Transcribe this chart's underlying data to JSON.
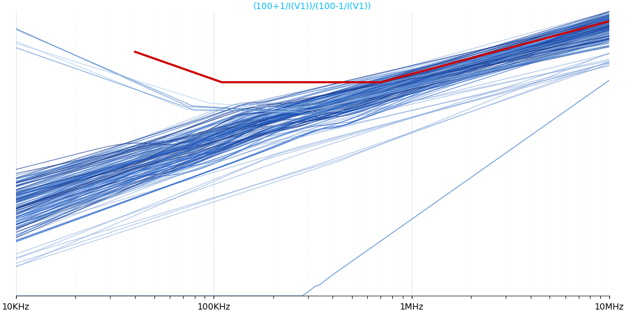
{
  "title": "(100+1/I(V1))/(100-1/I(V1))",
  "title_color": "#00BFFF",
  "title_fontsize": 9,
  "x_min": 10000,
  "x_max": 10000000,
  "xtick_labels": [
    "10KHz",
    "100KHz",
    "1MHz",
    "10MHz"
  ],
  "xtick_positions": [
    10000,
    100000,
    1000000,
    10000000
  ],
  "background_color": "#ffffff",
  "grid_color": "#b0c4de",
  "grid_minor_color": "#d0dff0",
  "num_traces": 128,
  "blue_dark": "#1a3a8c",
  "blue_mid": "#2060cc",
  "blue_light": "#5588cc",
  "blue_lighter": "#88aadd",
  "blue_pale": "#aaccee",
  "red_color": "#cc0000",
  "red_linewidth": 2.2,
  "y_min": -100,
  "y_max": 40
}
